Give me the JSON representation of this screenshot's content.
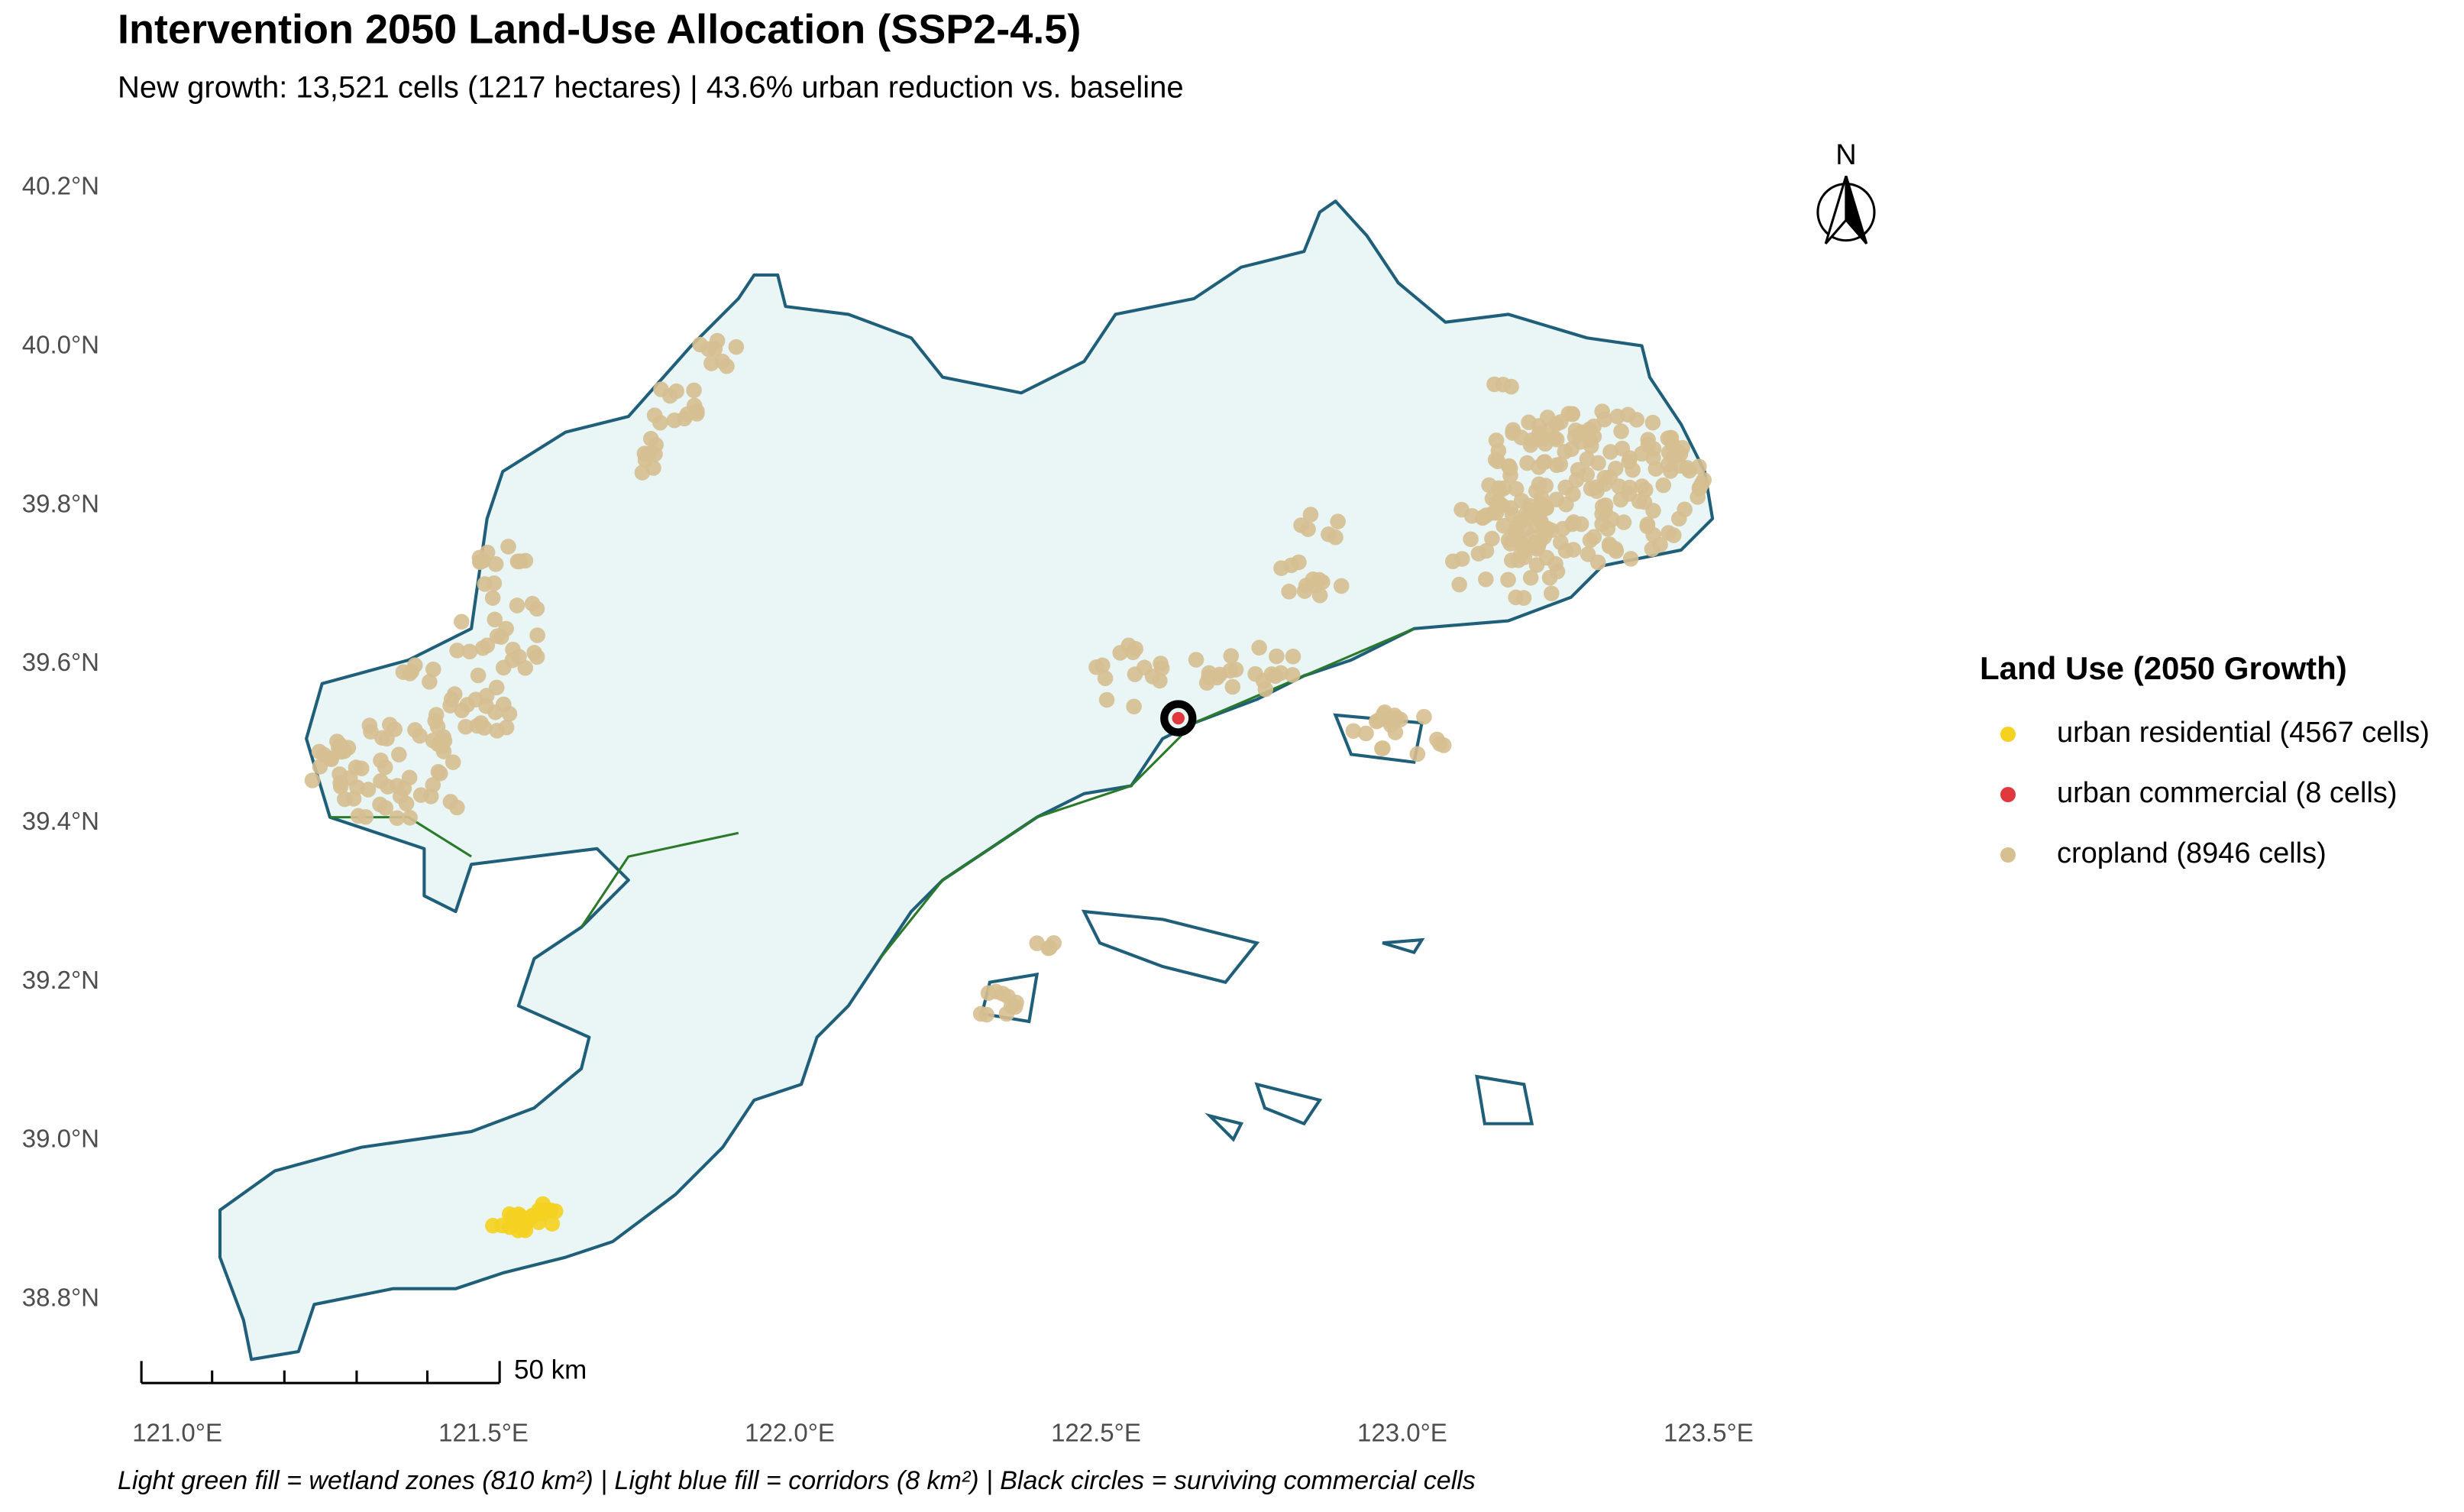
{
  "chart_data": {
    "type": "map",
    "title": "Intervention 2050 Land-Use Allocation (SSP2-4.5)",
    "subtitle": "New growth: 13,521 cells (1217 hectares) | 43.6% urban reduction vs. baseline",
    "caption": "Light green fill = wetland zones (810 km²) | Light blue fill = corridors (8 km²) | Black circles = surviving commercial cells",
    "north_label": "N",
    "scale_bar_label": "50 km",
    "legend_title": "Land Use (2050 Growth)",
    "series": [
      {
        "name": "urban residential (4567 cells)",
        "color": "#f5d21f"
      },
      {
        "name": "urban commercial (8 cells)",
        "color": "#e0383d"
      },
      {
        "name": "cropland (8946 cells)",
        "color": "#d6bf91"
      }
    ],
    "xlim": [
      120.95,
      123.55
    ],
    "ylim": [
      38.72,
      40.25
    ],
    "xticks": [
      {
        "value": 121.0,
        "label": "121.0°E"
      },
      {
        "value": 121.5,
        "label": "121.5°E"
      },
      {
        "value": 122.0,
        "label": "122.0°E"
      },
      {
        "value": 122.5,
        "label": "122.5°E"
      },
      {
        "value": 123.0,
        "label": "123.0°E"
      },
      {
        "value": 123.5,
        "label": "123.5°E"
      }
    ],
    "yticks": [
      {
        "value": 38.8,
        "label": "38.8°N"
      },
      {
        "value": 39.0,
        "label": "39.0°N"
      },
      {
        "value": 39.2,
        "label": "39.2°N"
      },
      {
        "value": 39.4,
        "label": "39.4°N"
      },
      {
        "value": 39.6,
        "label": "39.6°N"
      },
      {
        "value": 39.8,
        "label": "39.8°N"
      },
      {
        "value": 40.0,
        "label": "40.0°N"
      },
      {
        "value": 40.2,
        "label": "40.2°N"
      }
    ]
  }
}
